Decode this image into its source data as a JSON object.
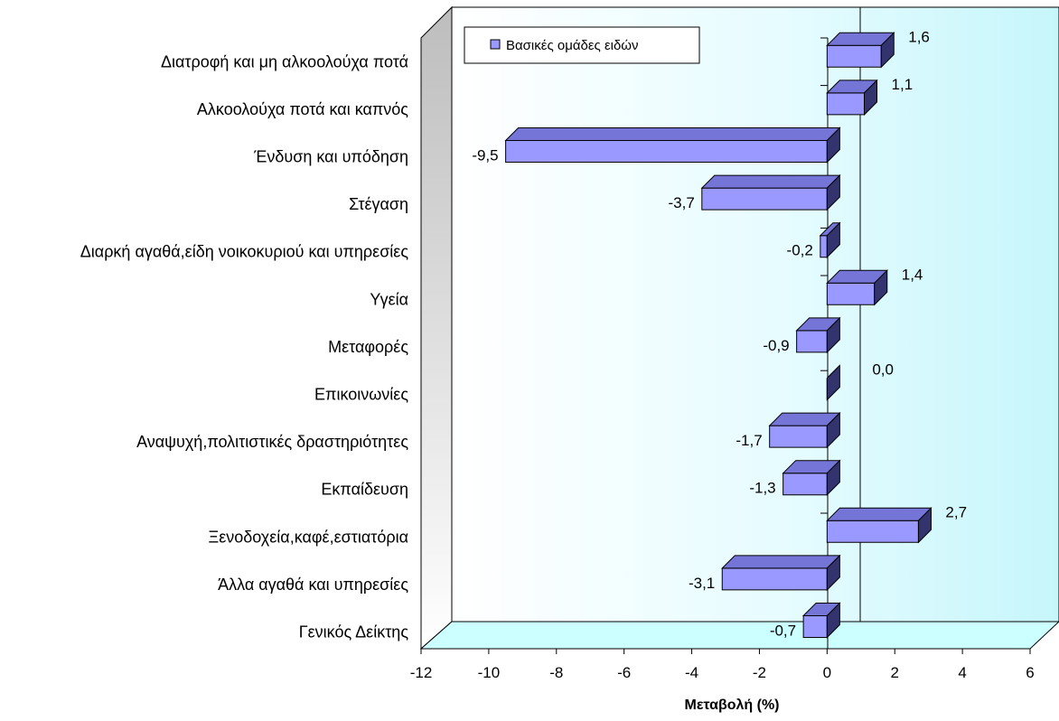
{
  "chart_data": {
    "type": "bar",
    "orientation": "horizontal",
    "style": "3d",
    "categories": [
      "Διατροφή και μη αλκοολούχα ποτά",
      "Αλκοολούχα ποτά και καπνός",
      "Ένδυση και υπόδηση",
      "Στέγαση",
      "Διαρκή αγαθά,είδη νοικοκυριού και υπηρεσίες",
      "Υγεία",
      "Μεταφορές",
      "Επικοινωνίες",
      "Αναψυχή,πολιτιστικές δραστηριότητες",
      "Εκπαίδευση",
      "Ξενοδοχεία,καφέ,εστιατόρια",
      "Άλλα αγαθά και υπηρεσίες",
      "Γενικός Δείκτης"
    ],
    "series": [
      {
        "name": "Βασικές ομάδες ειδών",
        "values": [
          1.6,
          1.1,
          -9.5,
          -3.7,
          -0.2,
          1.4,
          -0.9,
          0.0,
          -1.7,
          -1.3,
          2.7,
          -3.1,
          -0.7
        ],
        "labels": [
          "1,6",
          "1,1",
          "-9,5",
          "-3,7",
          "-0,2",
          "1,4",
          "-0,9",
          "0,0",
          "-1,7",
          "-1,3",
          "2,7",
          "-3,1",
          "-0,7"
        ],
        "color": "#9999ff"
      }
    ],
    "xlim": [
      -12,
      6
    ],
    "xticks": [
      -12,
      -10,
      -8,
      -6,
      -4,
      -2,
      0,
      2,
      4,
      6
    ],
    "xtick_labels": [
      "-12",
      "-10",
      "-8",
      "-6",
      "-4",
      "-2",
      "0",
      "2",
      "4",
      "6"
    ],
    "xlabel": "Μεταβολή (%)",
    "legend": {
      "position": "top-left",
      "entries": [
        "Βασικές ομάδες ειδών"
      ]
    },
    "colors": {
      "bar_front": "#9999ff",
      "bar_top": "#7575d8",
      "bar_side": "#33336e",
      "wall": "#d8fbff",
      "floor": "#ccffff",
      "left_wall": "#c8c8c8"
    }
  }
}
